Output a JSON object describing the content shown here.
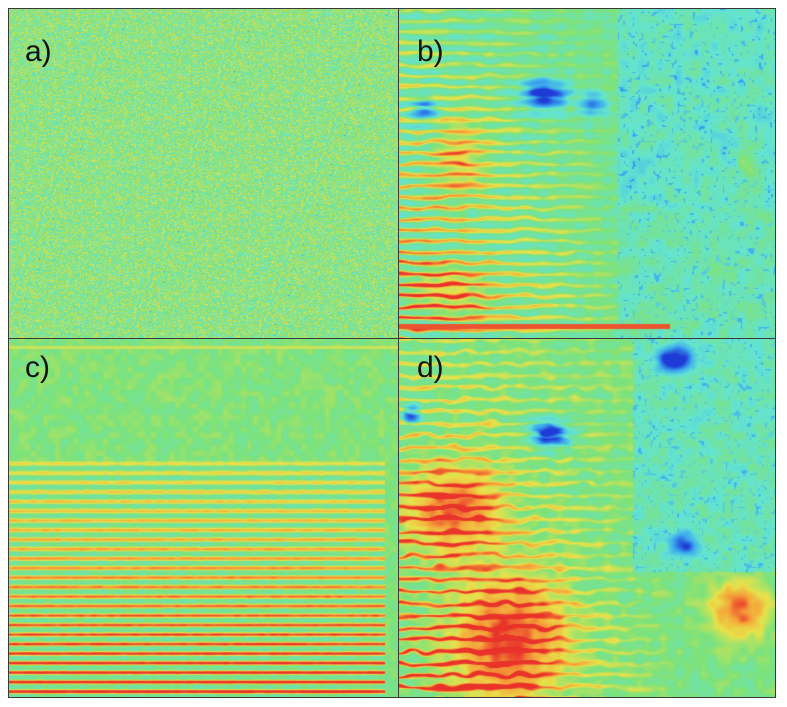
{
  "figure": {
    "panels": [
      {
        "id": "a",
        "label": "a)",
        "pattern": "noise"
      },
      {
        "id": "b",
        "label": "b)",
        "pattern": "spectrogram"
      },
      {
        "id": "c",
        "label": "c)",
        "pattern": "stripes"
      },
      {
        "id": "d",
        "label": "d)",
        "pattern": "spectrogram-dense"
      }
    ],
    "colormap": [
      "#1f3bd6",
      "#3aa6ef",
      "#63e3d2",
      "#7ee27a",
      "#e8e24a",
      "#f5a33a",
      "#e8322a"
    ],
    "background_color": "#7ee27a",
    "frame_color": "#3a3a3a"
  }
}
